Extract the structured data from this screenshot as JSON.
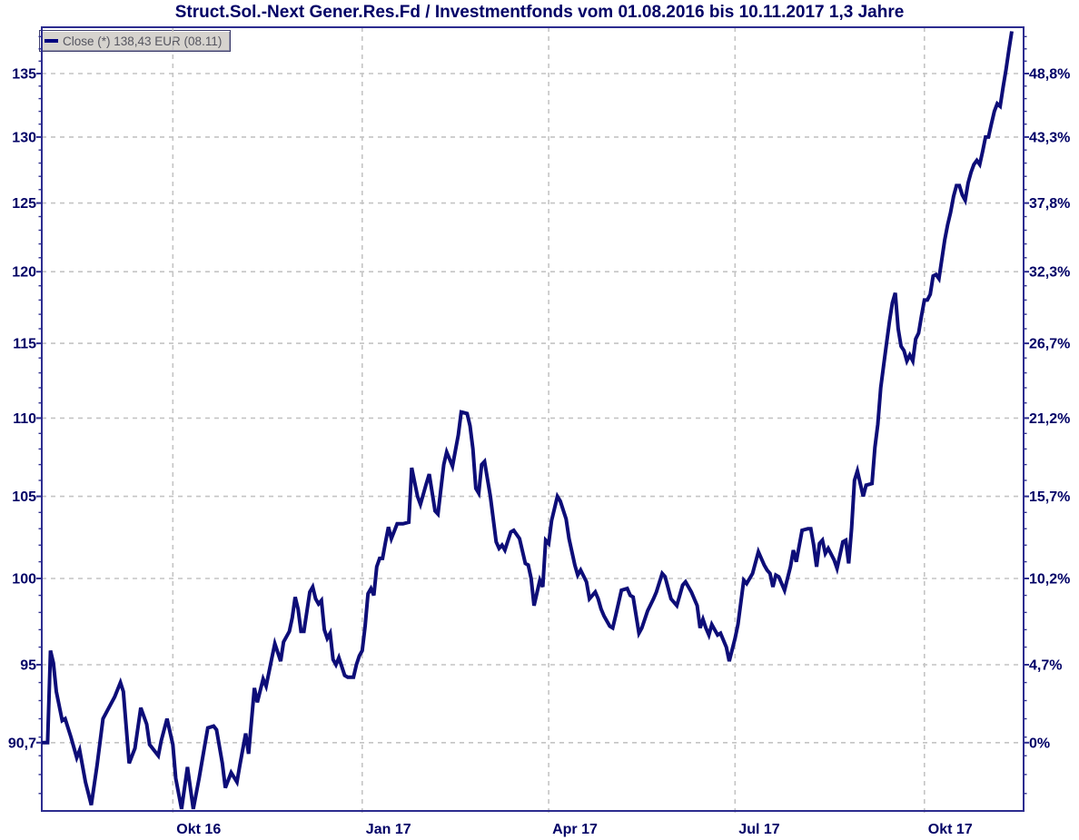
{
  "title": {
    "text": "Struct.Sol.-Next Gener.Res.Fd / Investmentfonds vom 01.08.2016 bis 10.11.2017 1,3 Jahre"
  },
  "legend": {
    "label": "Close (*) 138,43 EUR (08.11)",
    "swatch_color": "#000080"
  },
  "colors": {
    "title_text": "#000066",
    "line": "#0d0d78",
    "axis_border": "#2c2c8f",
    "grid": "#c4c4c4",
    "axis_label": "#000066",
    "legend_text": "#55555f",
    "legend_bg": "#d6d3ce"
  },
  "chart_data": {
    "type": "line",
    "title": "Struct.Sol.-Next Gener.Res.Fd / Investmentfonds vom 01.08.2016 bis 10.11.2017 1,3 Jahre",
    "instrument": "Struct.Sol.-Next Gener.Res.Fd",
    "category": "Investmentfonds",
    "series": [
      {
        "name": "Close",
        "unit": "EUR",
        "last_value": "138,43",
        "last_value_date": "08.11",
        "points": [
          [
            0,
            90.7
          ],
          [
            2,
            90.7
          ],
          [
            3,
            95.8
          ],
          [
            4,
            95.1
          ],
          [
            5,
            93.5
          ],
          [
            7,
            91.9
          ],
          [
            8,
            92.0
          ],
          [
            10,
            91.0
          ],
          [
            12,
            89.9
          ],
          [
            13,
            90.3
          ],
          [
            15,
            88.6
          ],
          [
            16,
            88.0
          ],
          [
            17,
            87.4
          ],
          [
            19,
            89.5
          ],
          [
            21,
            92.0
          ],
          [
            23,
            92.6
          ],
          [
            25,
            93.2
          ],
          [
            27,
            94.0
          ],
          [
            28,
            93.5
          ],
          [
            30,
            89.6
          ],
          [
            32,
            90.4
          ],
          [
            34,
            92.6
          ],
          [
            36,
            91.7
          ],
          [
            37,
            90.6
          ],
          [
            39,
            90.2
          ],
          [
            40,
            90.0
          ],
          [
            41,
            90.8
          ],
          [
            43,
            92.0
          ],
          [
            45,
            90.6
          ],
          [
            46,
            88.8
          ],
          [
            48,
            87.2
          ],
          [
            50,
            89.4
          ],
          [
            52,
            87.2
          ],
          [
            54,
            88.8
          ],
          [
            56,
            90.6
          ],
          [
            57,
            91.5
          ],
          [
            59,
            91.6
          ],
          [
            60,
            91.4
          ],
          [
            62,
            89.6
          ],
          [
            63,
            88.3
          ],
          [
            65,
            89.1
          ],
          [
            67,
            88.6
          ],
          [
            68,
            89.5
          ],
          [
            70,
            91.2
          ],
          [
            71,
            90.1
          ],
          [
            73,
            93.7
          ],
          [
            74,
            92.9
          ],
          [
            76,
            94.2
          ],
          [
            77,
            93.8
          ],
          [
            79,
            95.4
          ],
          [
            80,
            96.2
          ],
          [
            81,
            95.7
          ],
          [
            82,
            95.2
          ],
          [
            83,
            96.3
          ],
          [
            85,
            96.9
          ],
          [
            86,
            97.7
          ],
          [
            87,
            98.9
          ],
          [
            88,
            98.2
          ],
          [
            89,
            96.9
          ],
          [
            90,
            96.9
          ],
          [
            92,
            99.2
          ],
          [
            93,
            99.5
          ],
          [
            94,
            98.8
          ],
          [
            95,
            98.5
          ],
          [
            96,
            98.7
          ],
          [
            97,
            97.0
          ],
          [
            98,
            96.5
          ],
          [
            99,
            96.8
          ],
          [
            100,
            95.3
          ],
          [
            101,
            95.0
          ],
          [
            102,
            95.4
          ],
          [
            104,
            94.4
          ],
          [
            105,
            94.3
          ],
          [
            107,
            94.3
          ],
          [
            108,
            95.0
          ],
          [
            109,
            95.5
          ],
          [
            110,
            95.8
          ],
          [
            111,
            97.2
          ],
          [
            112,
            99.1
          ],
          [
            113,
            99.4
          ],
          [
            114,
            99.0
          ],
          [
            115,
            100.7
          ],
          [
            116,
            101.2
          ],
          [
            117,
            101.2
          ],
          [
            118,
            102.2
          ],
          [
            119,
            103.1
          ],
          [
            120,
            102.4
          ],
          [
            122,
            103.3
          ],
          [
            124,
            103.3
          ],
          [
            126,
            103.4
          ],
          [
            127,
            106.8
          ],
          [
            129,
            105.0
          ],
          [
            130,
            104.5
          ],
          [
            132,
            105.8
          ],
          [
            133,
            106.4
          ],
          [
            135,
            104.1
          ],
          [
            136,
            103.9
          ],
          [
            138,
            107.0
          ],
          [
            139,
            107.8
          ],
          [
            141,
            106.9
          ],
          [
            142,
            107.9
          ],
          [
            143,
            108.9
          ],
          [
            144,
            110.4
          ],
          [
            146,
            110.3
          ],
          [
            147,
            109.5
          ],
          [
            148,
            108.0
          ],
          [
            149,
            105.5
          ],
          [
            150,
            105.2
          ],
          [
            151,
            107.0
          ],
          [
            152,
            107.2
          ],
          [
            154,
            105.0
          ],
          [
            156,
            102.2
          ],
          [
            157,
            101.8
          ],
          [
            158,
            102.0
          ],
          [
            159,
            101.7
          ],
          [
            161,
            102.8
          ],
          [
            162,
            102.9
          ],
          [
            164,
            102.4
          ],
          [
            166,
            100.9
          ],
          [
            167,
            100.8
          ],
          [
            168,
            100.0
          ],
          [
            169,
            98.4
          ],
          [
            171,
            99.9
          ],
          [
            172,
            99.5
          ],
          [
            173,
            102.3
          ],
          [
            174,
            102.1
          ],
          [
            175,
            103.5
          ],
          [
            177,
            105.0
          ],
          [
            178,
            104.7
          ],
          [
            180,
            103.6
          ],
          [
            181,
            102.4
          ],
          [
            183,
            100.8
          ],
          [
            184,
            100.2
          ],
          [
            185,
            100.5
          ],
          [
            187,
            99.8
          ],
          [
            188,
            98.8
          ],
          [
            190,
            99.2
          ],
          [
            191,
            98.8
          ],
          [
            192,
            98.2
          ],
          [
            193,
            97.8
          ],
          [
            195,
            97.2
          ],
          [
            196,
            97.1
          ],
          [
            197,
            97.8
          ],
          [
            199,
            99.3
          ],
          [
            201,
            99.4
          ],
          [
            202,
            99.0
          ],
          [
            203,
            98.9
          ],
          [
            205,
            96.8
          ],
          [
            206,
            97.1
          ],
          [
            208,
            98.1
          ],
          [
            210,
            98.8
          ],
          [
            211,
            99.2
          ],
          [
            213,
            100.3
          ],
          [
            214,
            100.1
          ],
          [
            216,
            98.8
          ],
          [
            218,
            98.4
          ],
          [
            220,
            99.6
          ],
          [
            221,
            99.8
          ],
          [
            223,
            99.2
          ],
          [
            225,
            98.4
          ],
          [
            226,
            97.1
          ],
          [
            227,
            97.6
          ],
          [
            228,
            97.1
          ],
          [
            229,
            96.7
          ],
          [
            230,
            97.3
          ],
          [
            232,
            96.7
          ],
          [
            233,
            96.8
          ],
          [
            235,
            96.0
          ],
          [
            236,
            95.2
          ],
          [
            238,
            96.5
          ],
          [
            239,
            97.3
          ],
          [
            241,
            99.9
          ],
          [
            242,
            99.7
          ],
          [
            244,
            100.3
          ],
          [
            246,
            101.6
          ],
          [
            248,
            100.8
          ],
          [
            249,
            100.5
          ],
          [
            250,
            100.3
          ],
          [
            251,
            99.5
          ],
          [
            252,
            100.2
          ],
          [
            253,
            100.1
          ],
          [
            255,
            99.3
          ],
          [
            257,
            100.7
          ],
          [
            258,
            101.7
          ],
          [
            259,
            101.0
          ],
          [
            261,
            102.9
          ],
          [
            263,
            103.0
          ],
          [
            264,
            103.0
          ],
          [
            265,
            102.0
          ],
          [
            266,
            100.7
          ],
          [
            267,
            102.1
          ],
          [
            268,
            102.3
          ],
          [
            269,
            101.5
          ],
          [
            270,
            101.8
          ],
          [
            272,
            101.1
          ],
          [
            273,
            100.6
          ],
          [
            275,
            102.2
          ],
          [
            276,
            102.3
          ],
          [
            277,
            100.9
          ],
          [
            278,
            103.0
          ],
          [
            279,
            106.0
          ],
          [
            280,
            106.6
          ],
          [
            282,
            105.0
          ],
          [
            283,
            105.7
          ],
          [
            285,
            105.8
          ],
          [
            286,
            108.1
          ],
          [
            287,
            109.6
          ],
          [
            288,
            112.0
          ],
          [
            289,
            113.5
          ],
          [
            290,
            115.0
          ],
          [
            291,
            116.5
          ],
          [
            292,
            117.8
          ],
          [
            293,
            118.5
          ],
          [
            294,
            116.0
          ],
          [
            295,
            114.8
          ],
          [
            296,
            114.5
          ],
          [
            297,
            113.8
          ],
          [
            298,
            114.2
          ],
          [
            299,
            113.8
          ],
          [
            300,
            115.3
          ],
          [
            301,
            115.7
          ],
          [
            302,
            116.9
          ],
          [
            303,
            118.0
          ],
          [
            304,
            118.0
          ],
          [
            305,
            118.4
          ],
          [
            306,
            119.7
          ],
          [
            307,
            119.8
          ],
          [
            308,
            119.5
          ],
          [
            309,
            120.9
          ],
          [
            310,
            122.3
          ],
          [
            311,
            123.4
          ],
          [
            312,
            124.3
          ],
          [
            313,
            125.5
          ],
          [
            314,
            126.3
          ],
          [
            315,
            126.3
          ],
          [
            316,
            125.6
          ],
          [
            317,
            125.2
          ],
          [
            318,
            126.5
          ],
          [
            319,
            127.3
          ],
          [
            320,
            127.9
          ],
          [
            321,
            128.2
          ],
          [
            322,
            127.9
          ],
          [
            323,
            128.9
          ],
          [
            324,
            130.0
          ],
          [
            325,
            130.0
          ],
          [
            326,
            131.0
          ],
          [
            327,
            132.0
          ],
          [
            328,
            132.6
          ],
          [
            329,
            132.4
          ],
          [
            330,
            133.9
          ],
          [
            331,
            135.3
          ],
          [
            332,
            136.9
          ],
          [
            333,
            138.43
          ]
        ]
      }
    ],
    "x_axis": {
      "start_date": "01.08.2016",
      "end_date": "10.11.2017",
      "span_label": "1,3 Jahre",
      "unit": "trading-day index",
      "total_days": 333,
      "tick_labels": [
        {
          "text": "Okt 16",
          "day": 45
        },
        {
          "text": "Jan 17",
          "day": 110
        },
        {
          "text": "Apr 17",
          "day": 174
        },
        {
          "text": "Jul 17",
          "day": 238
        },
        {
          "text": "Okt 17",
          "day": 303
        }
      ]
    },
    "y_axis": {
      "scale": "log",
      "base_price": 90.7,
      "left_labels": [
        {
          "text": "135",
          "value": 135
        },
        {
          "text": "130",
          "value": 130
        },
        {
          "text": "125",
          "value": 125
        },
        {
          "text": "120",
          "value": 120
        },
        {
          "text": "115",
          "value": 115
        },
        {
          "text": "110",
          "value": 110
        },
        {
          "text": "105",
          "value": 105
        },
        {
          "text": "100",
          "value": 100
        },
        {
          "text": "95",
          "value": 95
        },
        {
          "text": "90,7",
          "value": 90.7
        }
      ],
      "right_labels": [
        {
          "text": "48,8%",
          "value": 135
        },
        {
          "text": "43,3%",
          "value": 130
        },
        {
          "text": "37,8%",
          "value": 125
        },
        {
          "text": "32,3%",
          "value": 120
        },
        {
          "text": "26,7%",
          "value": 115
        },
        {
          "text": "21,2%",
          "value": 110
        },
        {
          "text": "15,7%",
          "value": 105
        },
        {
          "text": "10,2%",
          "value": 100
        },
        {
          "text": "4,7%",
          "value": 95
        },
        {
          "text": "0%",
          "value": 90.7
        }
      ],
      "minor_tick_range": [
        88,
        138
      ],
      "minor_tick_step": 1
    },
    "grid": {
      "h_values": [
        135,
        130,
        125,
        120,
        115,
        110,
        105,
        100,
        95,
        90.7
      ],
      "v_days": [
        45,
        110,
        174,
        238,
        303
      ],
      "style": "dashed"
    },
    "legend_position": "top-left"
  }
}
